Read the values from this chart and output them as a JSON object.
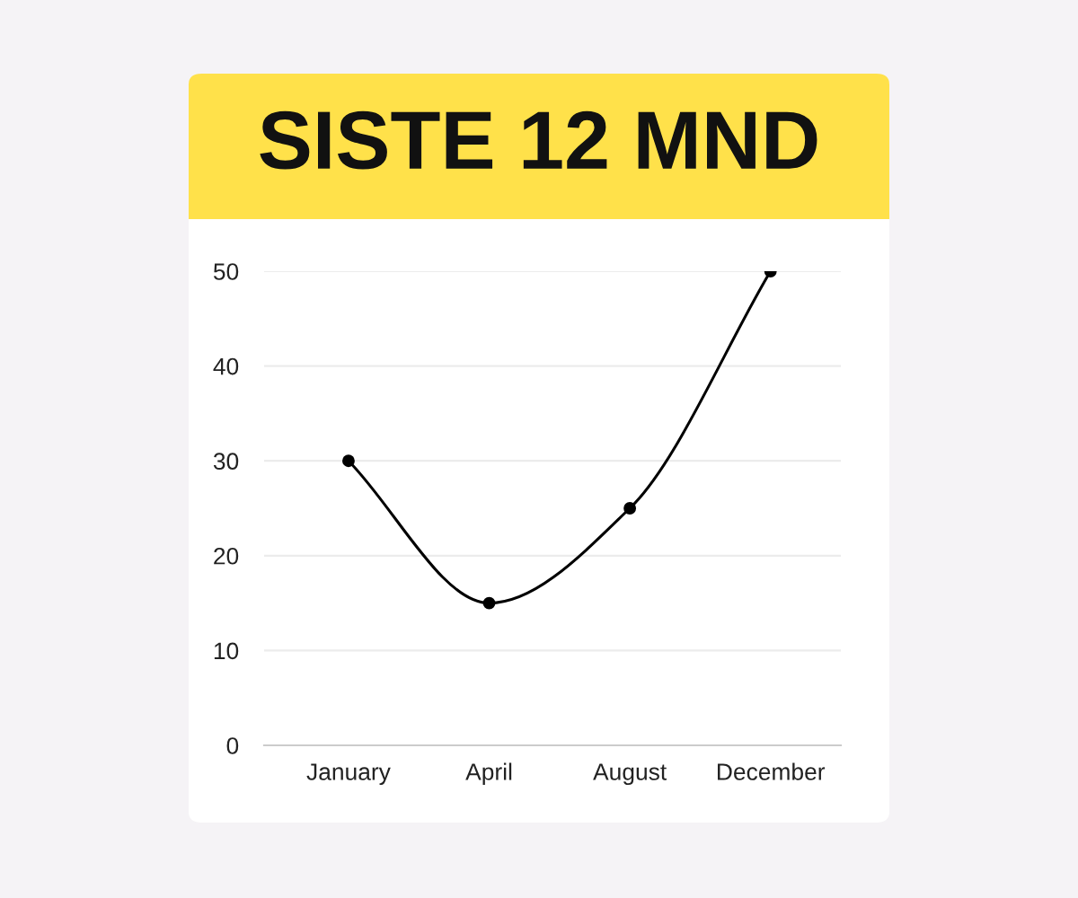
{
  "chart_data": {
    "type": "line",
    "title": "SISTE 12 MND",
    "categories": [
      "January",
      "April",
      "August",
      "December"
    ],
    "series": [
      {
        "color": "#000000",
        "values": [
          30,
          15,
          25,
          50
        ]
      }
    ],
    "ylim": [
      0,
      50
    ],
    "yticks": [
      0,
      10,
      20,
      30,
      40,
      50
    ],
    "grid": "y",
    "marker": "circle",
    "line_style": "solid",
    "legend": false
  }
}
